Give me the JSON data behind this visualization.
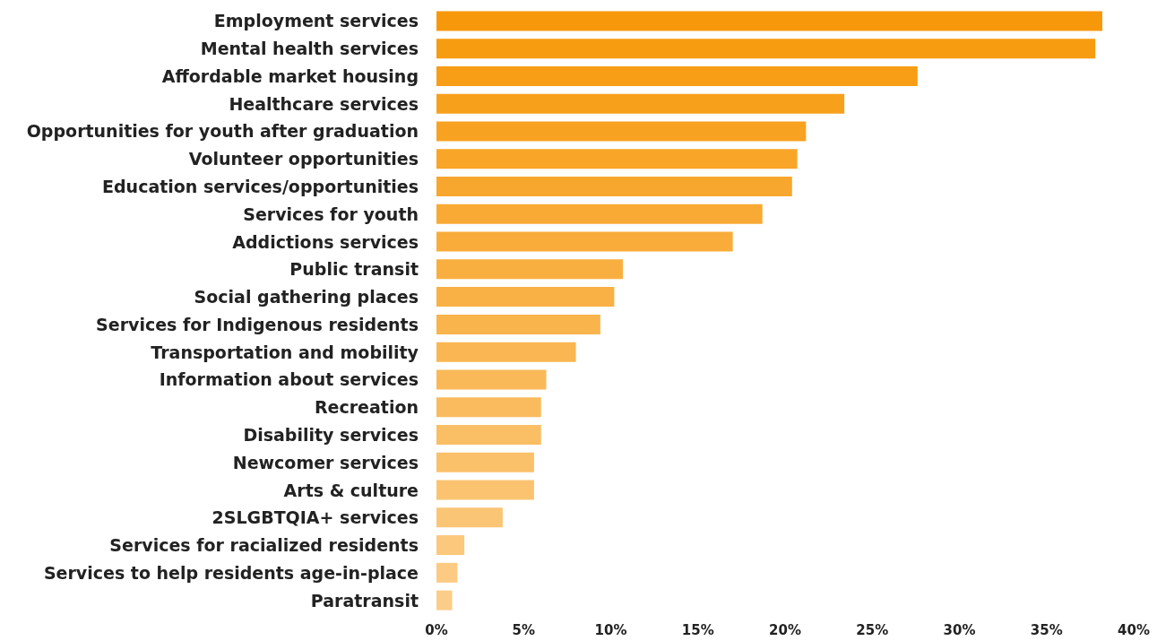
{
  "chart_data": {
    "type": "bar",
    "orientation": "horizontal",
    "categories": [
      "Employment services",
      "Mental health services",
      "Affordable market housing",
      "Healthcare services",
      "Opportunities for youth after graduation",
      "Volunteer opportunities",
      "Education services/opportunities",
      "Services for youth",
      "Addictions services",
      "Public transit",
      "Social gathering places",
      "Services for Indigenous residents",
      "Transportation and mobility",
      "Information about services",
      "Recreation",
      "Disability services",
      "Newcomer services",
      "Arts & culture",
      "2SLGBTQIA+ services",
      "Services for racialized residents",
      "Services to help residents age-in-place",
      "Paratransit"
    ],
    "values": [
      38.2,
      37.8,
      27.6,
      23.4,
      21.2,
      20.7,
      20.4,
      18.7,
      17.0,
      10.7,
      10.2,
      9.4,
      8.0,
      6.3,
      6.0,
      6.0,
      5.6,
      5.6,
      3.8,
      1.6,
      1.2,
      0.9
    ],
    "colors": [
      "#f7980a",
      "#f79b10",
      "#f79d16",
      "#f7a01c",
      "#f8a222",
      "#f8a528",
      "#f8a72e",
      "#f8aa34",
      "#f9ac3a",
      "#f9af40",
      "#f9b146",
      "#f9b44c",
      "#fab652",
      "#fab958",
      "#fabb5e",
      "#fabe64",
      "#fbc06a",
      "#fbc370",
      "#fbc576",
      "#fbc87c",
      "#fcca82",
      "#fccd88"
    ],
    "xlim": [
      0,
      40
    ],
    "xticks": [
      {
        "value": 0,
        "label": "0%"
      },
      {
        "value": 5,
        "label": "5%"
      },
      {
        "value": 10,
        "label": "10%"
      },
      {
        "value": 15,
        "label": "15%"
      },
      {
        "value": 20,
        "label": "20%"
      },
      {
        "value": 25,
        "label": "25%"
      },
      {
        "value": 30,
        "label": "30%"
      },
      {
        "value": 35,
        "label": "35%"
      },
      {
        "value": 40,
        "label": "40%"
      }
    ],
    "grid": false
  }
}
